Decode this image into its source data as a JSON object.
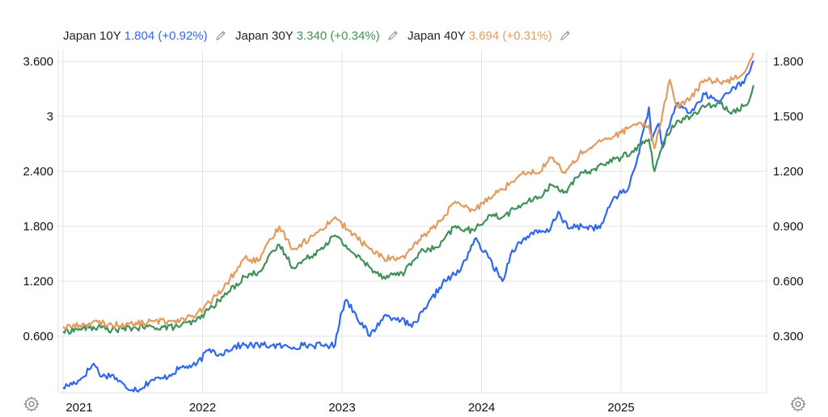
{
  "legend": [
    {
      "symbol": "Japan 10Y",
      "value": "1.804",
      "change": "(+0.92%)",
      "color": "#2f67f0"
    },
    {
      "symbol": "Japan 30Y",
      "value": "3.340",
      "change": "(+0.34%)",
      "color": "#3f9157"
    },
    {
      "symbol": "Japan 40Y",
      "value": "3.694",
      "change": "(+0.31%)",
      "color": "#e39b5f"
    }
  ],
  "chart_data": {
    "type": "line",
    "grid": true,
    "x_ticks": [
      "2021",
      "2022",
      "2023",
      "2024",
      "2025"
    ],
    "x_tick_values": [
      2021,
      2022,
      2023,
      2024,
      2025
    ],
    "xlim": [
      2020.97,
      2026.02
    ],
    "left_axis": {
      "ticks": [
        "0.600",
        "1.200",
        "1.800",
        "2.400",
        "3",
        "3.600"
      ],
      "tick_values": [
        0.6,
        1.2,
        1.8,
        2.4,
        3.0,
        3.6
      ],
      "ylim": [
        0.0,
        3.6
      ]
    },
    "right_axis": {
      "ticks": [
        "0.300",
        "0.600",
        "0.900",
        "1.200",
        "1.500",
        "1.800"
      ],
      "tick_values": [
        0.3,
        0.6,
        0.9,
        1.2,
        1.5,
        1.8
      ],
      "ylim": [
        0.0,
        1.8
      ]
    },
    "series": [
      {
        "name": "Japan 10Y",
        "axis": "right",
        "color": "#2f67f0",
        "x": [
          2021.0,
          2021.12,
          2021.22,
          2021.28,
          2021.35,
          2021.45,
          2021.55,
          2021.63,
          2021.72,
          2021.85,
          2021.95,
          2022.05,
          2022.12,
          2022.22,
          2022.28,
          2022.4,
          2022.5,
          2022.62,
          2022.72,
          2022.85,
          2022.95,
          2022.99,
          2023.03,
          2023.2,
          2023.3,
          2023.4,
          2023.5,
          2023.6,
          2023.72,
          2023.85,
          2023.95,
          2024.05,
          2024.15,
          2024.22,
          2024.35,
          2024.48,
          2024.55,
          2024.62,
          2024.72,
          2024.85,
          2024.95,
          2025.05,
          2025.12,
          2025.2,
          2025.22,
          2025.27,
          2025.3,
          2025.4,
          2025.5,
          2025.6,
          2025.7,
          2025.8,
          2025.88,
          2025.95
        ],
        "y": [
          0.02,
          0.06,
          0.15,
          0.08,
          0.09,
          0.02,
          0.01,
          0.06,
          0.07,
          0.13,
          0.14,
          0.23,
          0.2,
          0.24,
          0.25,
          0.25,
          0.25,
          0.24,
          0.25,
          0.25,
          0.25,
          0.42,
          0.5,
          0.3,
          0.41,
          0.4,
          0.35,
          0.45,
          0.59,
          0.66,
          0.83,
          0.73,
          0.6,
          0.77,
          0.86,
          0.87,
          0.98,
          0.89,
          0.9,
          0.89,
          1.06,
          1.1,
          1.28,
          1.55,
          1.37,
          1.46,
          1.33,
          1.57,
          1.52,
          1.62,
          1.58,
          1.66,
          1.68,
          1.804
        ]
      },
      {
        "name": "Japan 30Y",
        "axis": "left",
        "color": "#3f9157",
        "x": [
          2021.0,
          2021.12,
          2021.25,
          2021.35,
          2021.5,
          2021.65,
          2021.8,
          2021.95,
          2022.05,
          2022.15,
          2022.3,
          2022.4,
          2022.55,
          2022.65,
          2022.8,
          2022.95,
          2023.05,
          2023.2,
          2023.3,
          2023.45,
          2023.55,
          2023.7,
          2023.8,
          2023.95,
          2024.05,
          2024.15,
          2024.3,
          2024.4,
          2024.5,
          2024.6,
          2024.7,
          2024.8,
          2024.9,
          2025.0,
          2025.08,
          2025.2,
          2025.24,
          2025.27,
          2025.3,
          2025.4,
          2025.5,
          2025.6,
          2025.7,
          2025.8,
          2025.9,
          2025.95
        ],
        "y": [
          0.65,
          0.68,
          0.7,
          0.67,
          0.69,
          0.7,
          0.7,
          0.76,
          0.9,
          1.03,
          1.25,
          1.3,
          1.6,
          1.35,
          1.5,
          1.7,
          1.55,
          1.35,
          1.25,
          1.3,
          1.51,
          1.58,
          1.79,
          1.75,
          1.92,
          1.9,
          2.05,
          2.1,
          2.25,
          2.18,
          2.35,
          2.42,
          2.5,
          2.55,
          2.62,
          2.75,
          2.4,
          2.55,
          2.7,
          2.95,
          3.0,
          3.1,
          3.15,
          3.05,
          3.12,
          3.34
        ]
      },
      {
        "name": "Japan 40Y",
        "axis": "left",
        "color": "#e39b5f",
        "x": [
          2021.0,
          2021.12,
          2021.25,
          2021.35,
          2021.5,
          2021.65,
          2021.8,
          2021.95,
          2022.05,
          2022.15,
          2022.3,
          2022.4,
          2022.55,
          2022.65,
          2022.8,
          2022.95,
          2023.05,
          2023.2,
          2023.3,
          2023.45,
          2023.55,
          2023.7,
          2023.8,
          2023.95,
          2024.05,
          2024.15,
          2024.3,
          2024.4,
          2024.5,
          2024.6,
          2024.7,
          2024.8,
          2024.9,
          2025.0,
          2025.08,
          2025.2,
          2025.24,
          2025.27,
          2025.3,
          2025.35,
          2025.4,
          2025.5,
          2025.6,
          2025.7,
          2025.8,
          2025.9,
          2025.95
        ],
        "y": [
          0.7,
          0.72,
          0.75,
          0.72,
          0.73,
          0.76,
          0.77,
          0.82,
          0.97,
          1.12,
          1.45,
          1.42,
          1.8,
          1.55,
          1.7,
          1.9,
          1.75,
          1.55,
          1.45,
          1.45,
          1.65,
          1.85,
          2.05,
          1.97,
          2.12,
          2.2,
          2.4,
          2.38,
          2.55,
          2.38,
          2.58,
          2.68,
          2.75,
          2.82,
          2.9,
          2.9,
          2.65,
          2.85,
          3.05,
          3.4,
          3.1,
          3.2,
          3.4,
          3.38,
          3.4,
          3.52,
          3.694
        ]
      }
    ]
  }
}
